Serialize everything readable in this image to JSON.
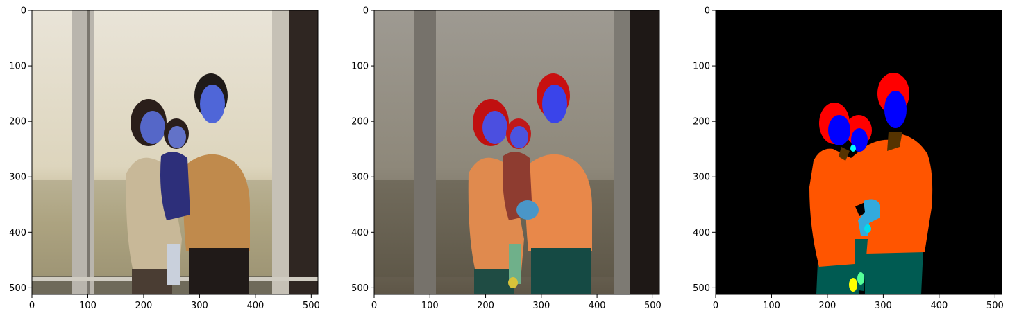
{
  "chart_data": [
    {
      "type": "image",
      "image_content": "photo",
      "xlim": [
        0,
        512
      ],
      "ylim": [
        512,
        0
      ],
      "x_ticks": [
        0,
        100,
        200,
        300,
        400,
        500
      ],
      "y_ticks": [
        0,
        100,
        200,
        300,
        400,
        500
      ],
      "x_tick_labels": [
        "0",
        "100",
        "200",
        "300",
        "400",
        "500"
      ],
      "y_tick_labels": [
        "0",
        "100",
        "200",
        "300",
        "400",
        "500"
      ]
    },
    {
      "type": "image",
      "image_content": "segmentation overlay",
      "xlim": [
        0,
        512
      ],
      "ylim": [
        512,
        0
      ],
      "x_ticks": [
        0,
        100,
        200,
        300,
        400,
        500
      ],
      "y_ticks": [
        0,
        100,
        200,
        300,
        400,
        500
      ],
      "x_tick_labels": [
        "0",
        "100",
        "200",
        "300",
        "400",
        "500"
      ],
      "y_tick_labels": [
        "0",
        "100",
        "200",
        "300",
        "400",
        "500"
      ]
    },
    {
      "type": "image",
      "image_content": "segmentation mask",
      "xlim": [
        0,
        512
      ],
      "ylim": [
        512,
        0
      ],
      "x_ticks": [
        0,
        100,
        200,
        300,
        400,
        500
      ],
      "y_ticks": [
        0,
        100,
        200,
        300,
        400,
        500
      ],
      "x_tick_labels": [
        "0",
        "100",
        "200",
        "300",
        "400",
        "500"
      ],
      "y_tick_labels": [
        "0",
        "100",
        "200",
        "300",
        "400",
        "500"
      ]
    }
  ],
  "colors": {
    "background": "#000000",
    "hair": "#ff0000",
    "face": "#0000ff",
    "clothes": "#ff5500",
    "pants": "#005b52",
    "neck": "#553300",
    "hands": "#33aadd",
    "baby_face_detail": "#00ffff",
    "shoes": "#ffff00",
    "legs": "#55ff99"
  }
}
